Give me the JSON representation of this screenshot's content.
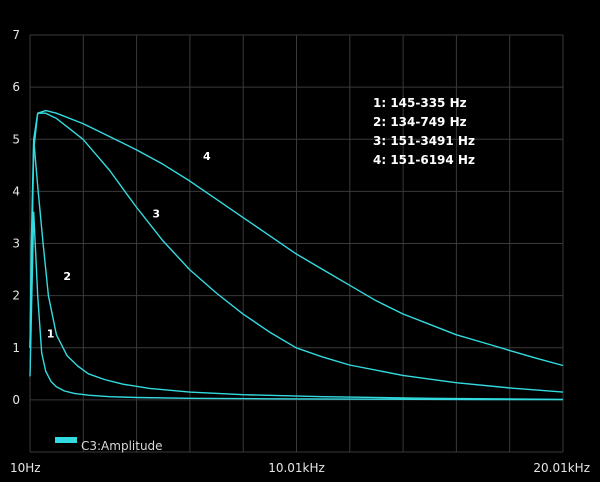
{
  "chart_data": {
    "type": "line",
    "title": "",
    "xlabel": "",
    "ylabel": "",
    "xlim": [
      10,
      20010
    ],
    "ylim": [
      -1,
      7
    ],
    "grid": true,
    "colors": {
      "background": "#000000",
      "grid": "#3a3a3a",
      "trace": "#33dbe0",
      "text": "#e6e6e6"
    },
    "x_ticks": [
      {
        "value": 10,
        "label": "10Hz"
      },
      {
        "value": 10010,
        "label": "10.01kHz"
      },
      {
        "value": 20010,
        "label": "20.01kHz"
      }
    ],
    "y_ticks": [
      {
        "value": 7,
        "label": "7"
      },
      {
        "value": 6,
        "label": "6"
      },
      {
        "value": 5,
        "label": "5"
      },
      {
        "value": 4,
        "label": "4"
      },
      {
        "value": 3,
        "label": "3"
      },
      {
        "value": 2,
        "label": "2"
      },
      {
        "value": 1,
        "label": "1"
      },
      {
        "value": 0,
        "label": "0"
      }
    ],
    "legend": {
      "label": "C3:Amplitude",
      "position": "bottom-left"
    },
    "annotations": [
      {
        "text": "1:  145-335 Hz"
      },
      {
        "text": "2:  134-749 Hz"
      },
      {
        "text": "3:  151-3491 Hz"
      },
      {
        "text": "4:  151-6194 Hz"
      }
    ],
    "series": [
      {
        "label": "1",
        "label_at": [
          640,
          1.2
        ],
        "x": [
          10,
          150,
          300,
          450,
          600,
          800,
          1000,
          1300,
          1700,
          2200,
          3000,
          4000,
          6000,
          9000,
          13000,
          17000,
          20010
        ],
        "y": [
          0.45,
          3.6,
          2.0,
          0.9,
          0.55,
          0.35,
          0.25,
          0.17,
          0.12,
          0.09,
          0.06,
          0.045,
          0.03,
          0.02,
          0.012,
          0.008,
          0.005
        ]
      },
      {
        "label": "2",
        "label_at": [
          1260,
          2.3
        ],
        "x": [
          10,
          60,
          150,
          300,
          500,
          700,
          1000,
          1400,
          1800,
          2200,
          2800,
          3500,
          4500,
          6000,
          8000,
          11000,
          15000,
          20010
        ],
        "y": [
          1.0,
          3.0,
          5.0,
          4.1,
          3.0,
          2.0,
          1.25,
          0.85,
          0.65,
          0.5,
          0.39,
          0.3,
          0.22,
          0.15,
          0.1,
          0.06,
          0.03,
          0.01
        ]
      },
      {
        "label": "3",
        "label_at": [
          4600,
          3.5
        ],
        "x": [
          10,
          150,
          300,
          600,
          1000,
          1500,
          2000,
          2500,
          3000,
          3500,
          4000,
          5000,
          6000,
          7000,
          8000,
          9000,
          10000,
          11000,
          12000,
          14000,
          16000,
          18000,
          20010
        ],
        "y": [
          1.0,
          4.8,
          5.5,
          5.5,
          5.4,
          5.2,
          5.0,
          4.7,
          4.4,
          4.05,
          3.7,
          3.05,
          2.5,
          2.05,
          1.65,
          1.3,
          1.0,
          0.82,
          0.67,
          0.47,
          0.33,
          0.23,
          0.15
        ]
      },
      {
        "label": "4",
        "label_at": [
          6500,
          4.6
        ],
        "x": [
          10,
          150,
          300,
          600,
          1000,
          2000,
          3000,
          4000,
          5000,
          6000,
          7000,
          8000,
          9000,
          10000,
          11000,
          12000,
          13000,
          14000,
          15000,
          16000,
          17000,
          18000,
          19000,
          20010
        ],
        "y": [
          1.0,
          5.0,
          5.5,
          5.55,
          5.5,
          5.3,
          5.05,
          4.8,
          4.52,
          4.2,
          3.85,
          3.5,
          3.15,
          2.8,
          2.5,
          2.2,
          1.9,
          1.65,
          1.45,
          1.25,
          1.1,
          0.95,
          0.8,
          0.66
        ]
      }
    ]
  }
}
